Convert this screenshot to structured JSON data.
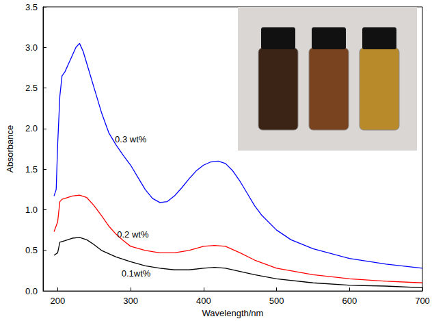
{
  "chart_data": {
    "type": "line",
    "x_label": "Wavelength/nm",
    "y_label": "Absorbance",
    "xlim": [
      180,
      700
    ],
    "xticks": [
      200,
      300,
      400,
      500,
      600,
      700
    ],
    "ylim": [
      0,
      3.5
    ],
    "yticks": [
      {
        "value": 0,
        "label": "0.0"
      },
      {
        "value": 0.5,
        "label": "0.5"
      },
      {
        "value": 1,
        "label": "1.0"
      },
      {
        "value": 1.5,
        "label": "1.5"
      },
      {
        "value": 2,
        "label": "2.0"
      },
      {
        "value": 2.5,
        "label": "2.5"
      },
      {
        "value": 3,
        "label": "3.0"
      },
      {
        "value": 3.5,
        "label": "3.5"
      }
    ],
    "grid": false,
    "series": [
      {
        "name": "0.3 wt%",
        "color": "#0000ff",
        "x": [
          195,
          198,
          200,
          203,
          206,
          210,
          215,
          220,
          225,
          230,
          235,
          240,
          250,
          260,
          270,
          280,
          290,
          300,
          310,
          320,
          330,
          340,
          350,
          360,
          370,
          380,
          390,
          400,
          410,
          420,
          430,
          440,
          450,
          460,
          470,
          480,
          500,
          520,
          550,
          600,
          650,
          700
        ],
        "values": [
          1.17,
          1.25,
          1.8,
          2.4,
          2.65,
          2.7,
          2.8,
          2.9,
          3.0,
          3.05,
          2.95,
          2.8,
          2.5,
          2.2,
          1.95,
          1.8,
          1.67,
          1.55,
          1.4,
          1.25,
          1.14,
          1.09,
          1.1,
          1.17,
          1.27,
          1.38,
          1.48,
          1.55,
          1.59,
          1.6,
          1.57,
          1.48,
          1.35,
          1.2,
          1.05,
          0.93,
          0.75,
          0.63,
          0.52,
          0.4,
          0.33,
          0.28
        ]
      },
      {
        "name": "0.2 wt%",
        "color": "#ff0000",
        "x": [
          195,
          200,
          203,
          206,
          210,
          220,
          230,
          240,
          250,
          260,
          270,
          280,
          290,
          300,
          320,
          340,
          360,
          380,
          400,
          415,
          430,
          450,
          470,
          500,
          550,
          600,
          650,
          700
        ],
        "values": [
          0.73,
          0.85,
          1.1,
          1.13,
          1.14,
          1.17,
          1.18,
          1.15,
          1.05,
          0.93,
          0.8,
          0.7,
          0.62,
          0.55,
          0.5,
          0.47,
          0.47,
          0.5,
          0.55,
          0.56,
          0.55,
          0.47,
          0.38,
          0.28,
          0.2,
          0.15,
          0.12,
          0.1
        ]
      },
      {
        "name": "0.1wt%",
        "color": "#000000",
        "x": [
          195,
          200,
          203,
          210,
          220,
          230,
          240,
          250,
          260,
          280,
          300,
          320,
          340,
          360,
          380,
          400,
          415,
          430,
          450,
          470,
          500,
          550,
          600,
          650,
          700
        ],
        "values": [
          0.44,
          0.47,
          0.6,
          0.62,
          0.65,
          0.66,
          0.63,
          0.57,
          0.5,
          0.42,
          0.36,
          0.31,
          0.28,
          0.26,
          0.26,
          0.28,
          0.29,
          0.28,
          0.24,
          0.2,
          0.15,
          0.1,
          0.07,
          0.06,
          0.04
        ]
      }
    ]
  }
}
